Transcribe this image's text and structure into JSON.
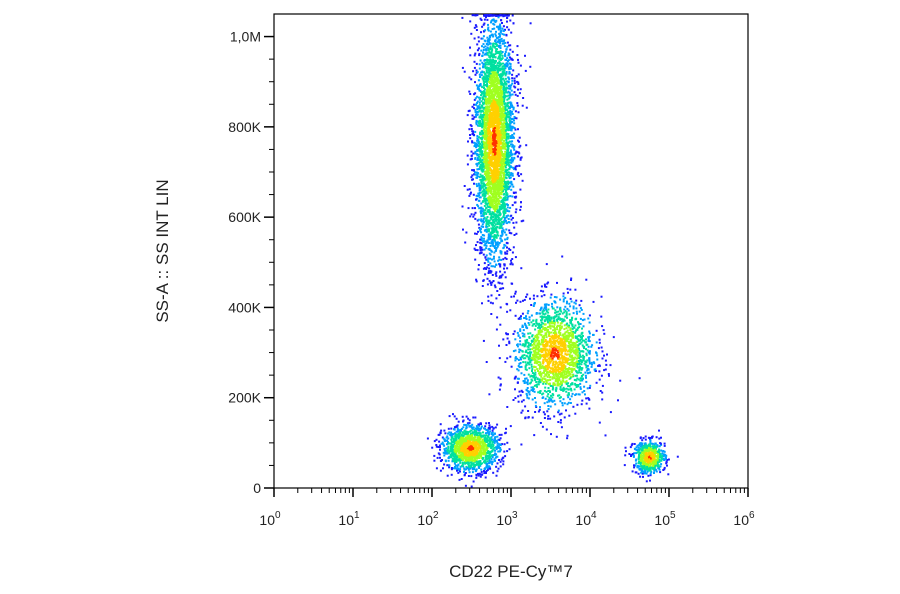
{
  "chart_data": {
    "type": "scatter",
    "title": "",
    "xlabel": "CD22 PE-Cy™7",
    "ylabel": "SS-A :: SS INT LIN",
    "x_scale": "log",
    "xlim": [
      1,
      1000000
    ],
    "ylim": [
      0,
      1050000
    ],
    "grid": false,
    "legend": "none",
    "x_ticks": [
      {
        "value": 1,
        "base": "10",
        "exp": "0"
      },
      {
        "value": 10,
        "base": "10",
        "exp": "1"
      },
      {
        "value": 100,
        "base": "10",
        "exp": "2"
      },
      {
        "value": 1000,
        "base": "10",
        "exp": "3"
      },
      {
        "value": 10000,
        "base": "10",
        "exp": "4"
      },
      {
        "value": 100000,
        "base": "10",
        "exp": "5"
      },
      {
        "value": 1000000,
        "base": "10",
        "exp": "6"
      }
    ],
    "y_ticks": [
      {
        "value": 0,
        "label": "0"
      },
      {
        "value": 200000,
        "label": "200K"
      },
      {
        "value": 400000,
        "label": "400K"
      },
      {
        "value": 600000,
        "label": "600K"
      },
      {
        "value": 800000,
        "label": "800K"
      },
      {
        "value": 1000000,
        "label": "1,0M"
      }
    ],
    "populations": [
      {
        "center_x": 600,
        "center_y": 770000,
        "spread_log_x": 0.12,
        "spread_y": 130000,
        "count": 4200
      },
      {
        "center_x": 3500,
        "center_y": 300000,
        "spread_log_x": 0.25,
        "spread_y": 60000,
        "count": 1800
      },
      {
        "center_x": 300,
        "center_y": 90000,
        "spread_log_x": 0.18,
        "spread_y": 25000,
        "count": 1400
      },
      {
        "center_x": 55000,
        "center_y": 70000,
        "spread_log_x": 0.1,
        "spread_y": 18000,
        "count": 600
      }
    ],
    "density_colors": [
      "#1a1aff",
      "#00a0ff",
      "#00e0a0",
      "#a0ff20",
      "#ffd000",
      "#ff3000"
    ]
  }
}
